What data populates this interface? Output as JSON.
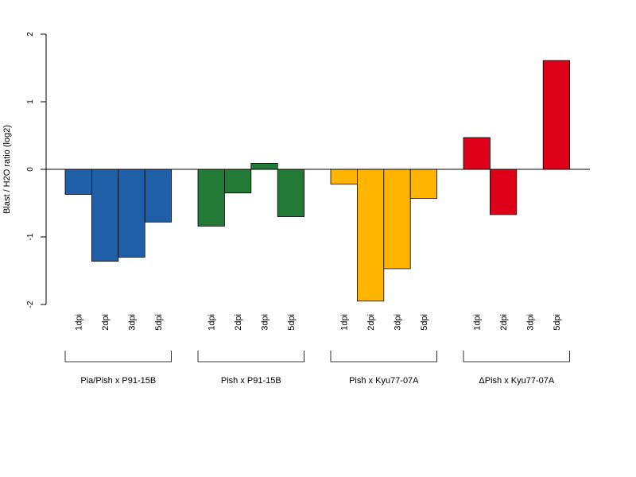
{
  "chart_data": {
    "type": "bar",
    "title": "",
    "xlabel": "",
    "ylabel": "Blast / H2O ratio (log2)",
    "ylim": [
      -2,
      2
    ],
    "yticks": [
      -2,
      -1,
      0,
      1,
      2
    ],
    "yticklabels": [
      "-2",
      "-1",
      "0",
      "1",
      "2"
    ],
    "grid": false,
    "legend": "none",
    "groups": [
      {
        "name": "Pia/Pish x P91-15B",
        "color": "#1f5fa8",
        "categories": [
          "1dpi",
          "2dpi",
          "3dpi",
          "5dpi"
        ],
        "values": [
          -0.37,
          -1.36,
          -1.3,
          -0.78
        ]
      },
      {
        "name": "Pish x P91-15B",
        "color": "#237a37",
        "categories": [
          "1dpi",
          "2dpi",
          "3dpi",
          "5dpi"
        ],
        "values": [
          -0.84,
          -0.35,
          0.09,
          -0.7
        ]
      },
      {
        "name": "Pish x Kyu77-07A",
        "color": "#ffb400",
        "categories": [
          "1dpi",
          "2dpi",
          "3dpi",
          "5dpi"
        ],
        "values": [
          -0.22,
          -1.95,
          -1.47,
          -0.43
        ]
      },
      {
        "name": "ΔPish x Kyu77-07A",
        "color": "#de0018",
        "categories": [
          "1dpi",
          "2dpi",
          "3dpi",
          "5dpi"
        ],
        "values": [
          0.47,
          -0.67,
          0,
          1.61
        ]
      }
    ]
  }
}
